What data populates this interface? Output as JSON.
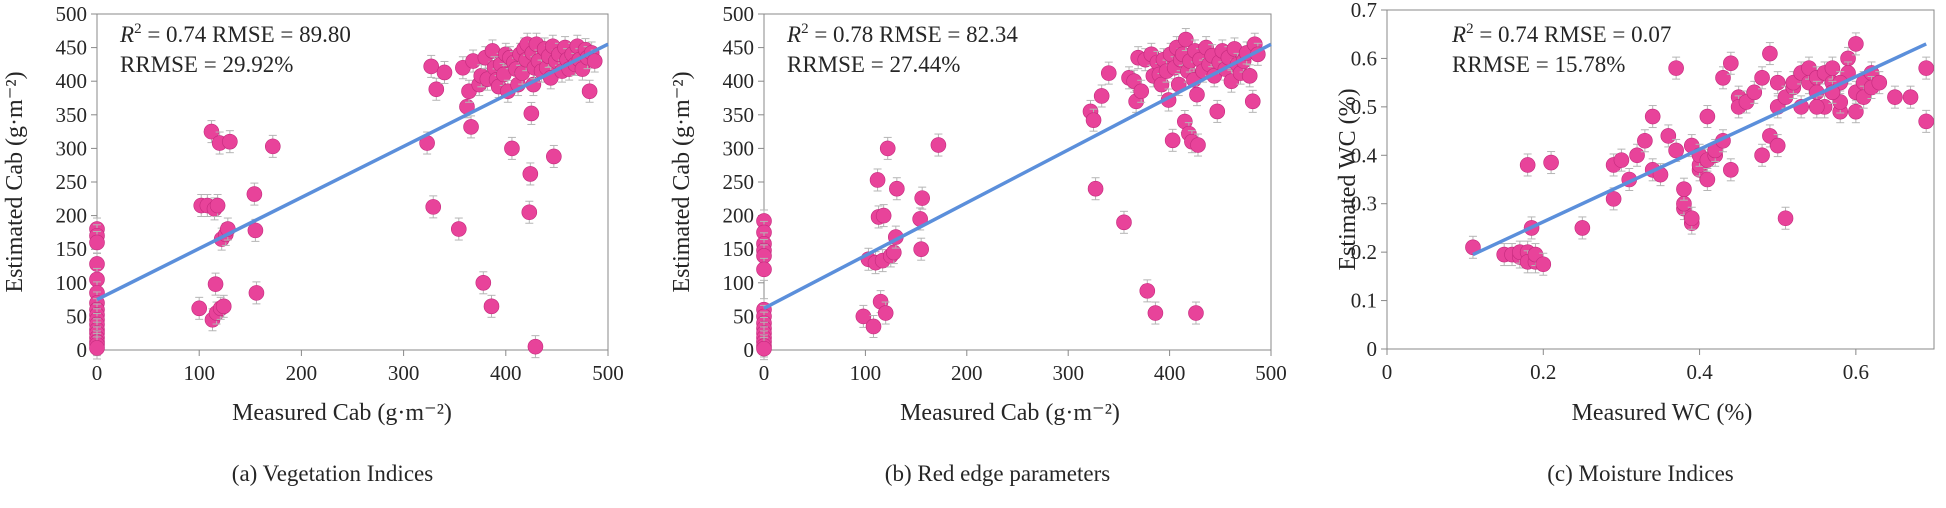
{
  "chart_data": [
    {
      "type": "scatter",
      "caption": "(a) Vegetation Indices",
      "xlabel": "Measured Cab (g·m⁻²)",
      "ylabel": "Estimated Cab (g·m⁻²)",
      "xlim": [
        0,
        500
      ],
      "ylim": [
        0,
        500
      ],
      "xticks": [
        0,
        100,
        200,
        300,
        400,
        500
      ],
      "yticks": [
        0,
        50,
        100,
        150,
        200,
        250,
        300,
        350,
        400,
        450,
        500
      ],
      "stats": {
        "r2": "0.74",
        "rmse": "89.80",
        "rrmse": "29.92%"
      },
      "fit": {
        "x": [
          0,
          500
        ],
        "y": [
          75,
          455
        ]
      },
      "points": [
        [
          0,
          180
        ],
        [
          0,
          170
        ],
        [
          0,
          160
        ],
        [
          0,
          128
        ],
        [
          0,
          105
        ],
        [
          0,
          85
        ],
        [
          0,
          70
        ],
        [
          0,
          60
        ],
        [
          0,
          52
        ],
        [
          0,
          45
        ],
        [
          0,
          38
        ],
        [
          0,
          30
        ],
        [
          0,
          25
        ],
        [
          0,
          18
        ],
        [
          0,
          12
        ],
        [
          0,
          8
        ],
        [
          0,
          3
        ],
        [
          100,
          62
        ],
        [
          102,
          215
        ],
        [
          108,
          215
        ],
        [
          112,
          325
        ],
        [
          113,
          45
        ],
        [
          115,
          210
        ],
        [
          116,
          98
        ],
        [
          117,
          55
        ],
        [
          118,
          215
        ],
        [
          120,
          308
        ],
        [
          121,
          62
        ],
        [
          122,
          165
        ],
        [
          124,
          65
        ],
        [
          126,
          172
        ],
        [
          128,
          180
        ],
        [
          130,
          310
        ],
        [
          154,
          232
        ],
        [
          155,
          178
        ],
        [
          156,
          85
        ],
        [
          172,
          303
        ],
        [
          323,
          308
        ],
        [
          327,
          422
        ],
        [
          329,
          213
        ],
        [
          332,
          388
        ],
        [
          340,
          413
        ],
        [
          354,
          180
        ],
        [
          358,
          420
        ],
        [
          362,
          362
        ],
        [
          364,
          385
        ],
        [
          366,
          332
        ],
        [
          368,
          430
        ],
        [
          374,
          395
        ],
        [
          376,
          408
        ],
        [
          378,
          100
        ],
        [
          380,
          435
        ],
        [
          382,
          403
        ],
        [
          386,
          65
        ],
        [
          387,
          445
        ],
        [
          389,
          420
        ],
        [
          391,
          402
        ],
        [
          393,
          392
        ],
        [
          395,
          425
        ],
        [
          398,
          410
        ],
        [
          400,
          440
        ],
        [
          402,
          385
        ],
        [
          404,
          435
        ],
        [
          406,
          300
        ],
        [
          408,
          428
        ],
        [
          410,
          418
        ],
        [
          412,
          395
        ],
        [
          414,
          440
        ],
        [
          416,
          412
        ],
        [
          418,
          448
        ],
        [
          420,
          432
        ],
        [
          421,
          455
        ],
        [
          423,
          205
        ],
        [
          424,
          262
        ],
        [
          425,
          352
        ],
        [
          426,
          442
        ],
        [
          427,
          395
        ],
        [
          428,
          420
        ],
        [
          429,
          5
        ],
        [
          430,
          455
        ],
        [
          432,
          430
        ],
        [
          435,
          415
        ],
        [
          438,
          448
        ],
        [
          440,
          420
        ],
        [
          442,
          437
        ],
        [
          444,
          405
        ],
        [
          446,
          452
        ],
        [
          447,
          288
        ],
        [
          449,
          430
        ],
        [
          452,
          440
        ],
        [
          455,
          415
        ],
        [
          458,
          450
        ],
        [
          460,
          432
        ],
        [
          462,
          418
        ],
        [
          465,
          440
        ],
        [
          468,
          425
        ],
        [
          470,
          452
        ],
        [
          472,
          432
        ],
        [
          475,
          418
        ],
        [
          478,
          447
        ],
        [
          480,
          435
        ],
        [
          482,
          385
        ],
        [
          484,
          442
        ],
        [
          487,
          430
        ]
      ]
    },
    {
      "type": "scatter",
      "caption": "(b) Red edge parameters",
      "xlabel": "Measured Cab (g·m⁻²)",
      "ylabel": "Estimated Cab (g·m⁻²)",
      "xlim": [
        0,
        500
      ],
      "ylim": [
        0,
        500
      ],
      "xticks": [
        0,
        100,
        200,
        300,
        400,
        500
      ],
      "yticks": [
        0,
        50,
        100,
        150,
        200,
        250,
        300,
        350,
        400,
        450,
        500
      ],
      "stats": {
        "r2": "0.78",
        "rmse": "82.34",
        "rrmse": "27.44%"
      },
      "fit": {
        "x": [
          0,
          500
        ],
        "y": [
          62,
          455
        ]
      },
      "points": [
        [
          0,
          192
        ],
        [
          0,
          175
        ],
        [
          0,
          158
        ],
        [
          0,
          148
        ],
        [
          0,
          140
        ],
        [
          0,
          120
        ],
        [
          0,
          60
        ],
        [
          0,
          50
        ],
        [
          0,
          40
        ],
        [
          0,
          32
        ],
        [
          0,
          25
        ],
        [
          0,
          18
        ],
        [
          0,
          12
        ],
        [
          0,
          6
        ],
        [
          0,
          2
        ],
        [
          98,
          50
        ],
        [
          103,
          135
        ],
        [
          108,
          35
        ],
        [
          110,
          130
        ],
        [
          112,
          253
        ],
        [
          113,
          198
        ],
        [
          115,
          72
        ],
        [
          117,
          133
        ],
        [
          118,
          200
        ],
        [
          120,
          55
        ],
        [
          122,
          300
        ],
        [
          125,
          140
        ],
        [
          128,
          145
        ],
        [
          130,
          168
        ],
        [
          131,
          240
        ],
        [
          154,
          195
        ],
        [
          155,
          150
        ],
        [
          156,
          226
        ],
        [
          172,
          305
        ],
        [
          322,
          355
        ],
        [
          325,
          342
        ],
        [
          327,
          240
        ],
        [
          333,
          378
        ],
        [
          340,
          412
        ],
        [
          355,
          190
        ],
        [
          360,
          405
        ],
        [
          365,
          400
        ],
        [
          367,
          370
        ],
        [
          369,
          435
        ],
        [
          372,
          385
        ],
        [
          376,
          432
        ],
        [
          378,
          88
        ],
        [
          382,
          440
        ],
        [
          384,
          408
        ],
        [
          386,
          55
        ],
        [
          388,
          428
        ],
        [
          390,
          410
        ],
        [
          392,
          395
        ],
        [
          394,
          432
        ],
        [
          397,
          415
        ],
        [
          399,
          372
        ],
        [
          401,
          440
        ],
        [
          403,
          312
        ],
        [
          405,
          420
        ],
        [
          407,
          450
        ],
        [
          409,
          395
        ],
        [
          411,
          432
        ],
        [
          413,
          440
        ],
        [
          415,
          340
        ],
        [
          416,
          462
        ],
        [
          418,
          415
        ],
        [
          419,
          322
        ],
        [
          420,
          430
        ],
        [
          422,
          310
        ],
        [
          424,
          402
        ],
        [
          425,
          445
        ],
        [
          426,
          55
        ],
        [
          427,
          380
        ],
        [
          428,
          305
        ],
        [
          430,
          432
        ],
        [
          433,
          415
        ],
        [
          436,
          450
        ],
        [
          439,
          425
        ],
        [
          442,
          438
        ],
        [
          444,
          408
        ],
        [
          447,
          355
        ],
        [
          449,
          428
        ],
        [
          452,
          445
        ],
        [
          455,
          418
        ],
        [
          458,
          435
        ],
        [
          461,
          400
        ],
        [
          464,
          448
        ],
        [
          467,
          425
        ],
        [
          470,
          412
        ],
        [
          473,
          430
        ],
        [
          476,
          442
        ],
        [
          479,
          408
        ],
        [
          482,
          370
        ],
        [
          484,
          455
        ],
        [
          487,
          440
        ]
      ]
    },
    {
      "type": "scatter",
      "caption": "(c) Moisture Indices",
      "xlabel": "Measured WC (%)",
      "ylabel": "Estimated WC (%)",
      "xlim": [
        0,
        0.7
      ],
      "ylim": [
        0,
        0.7
      ],
      "xticks": [
        0,
        0.2,
        0.4,
        0.6
      ],
      "yticks": [
        0,
        0.1,
        0.2,
        0.3,
        0.4,
        0.5,
        0.6,
        0.7
      ],
      "stats": {
        "r2": "0.74",
        "rmse": "0.07",
        "rrmse": "15.78%"
      },
      "fit": {
        "x": [
          0.11,
          0.69
        ],
        "y": [
          0.195,
          0.63
        ]
      },
      "points": [
        [
          0.11,
          0.21
        ],
        [
          0.15,
          0.195
        ],
        [
          0.16,
          0.195
        ],
        [
          0.17,
          0.19
        ],
        [
          0.17,
          0.2
        ],
        [
          0.18,
          0.2
        ],
        [
          0.18,
          0.18
        ],
        [
          0.18,
          0.38
        ],
        [
          0.185,
          0.25
        ],
        [
          0.19,
          0.18
        ],
        [
          0.19,
          0.195
        ],
        [
          0.2,
          0.175
        ],
        [
          0.21,
          0.385
        ],
        [
          0.25,
          0.25
        ],
        [
          0.29,
          0.31
        ],
        [
          0.29,
          0.38
        ],
        [
          0.3,
          0.39
        ],
        [
          0.31,
          0.35
        ],
        [
          0.32,
          0.4
        ],
        [
          0.33,
          0.43
        ],
        [
          0.34,
          0.37
        ],
        [
          0.34,
          0.48
        ],
        [
          0.35,
          0.36
        ],
        [
          0.36,
          0.44
        ],
        [
          0.37,
          0.41
        ],
        [
          0.37,
          0.58
        ],
        [
          0.38,
          0.29
        ],
        [
          0.38,
          0.3
        ],
        [
          0.38,
          0.33
        ],
        [
          0.39,
          0.26
        ],
        [
          0.39,
          0.27
        ],
        [
          0.39,
          0.42
        ],
        [
          0.4,
          0.37
        ],
        [
          0.4,
          0.38
        ],
        [
          0.4,
          0.4
        ],
        [
          0.41,
          0.35
        ],
        [
          0.41,
          0.39
        ],
        [
          0.41,
          0.48
        ],
        [
          0.42,
          0.4
        ],
        [
          0.42,
          0.41
        ],
        [
          0.43,
          0.43
        ],
        [
          0.43,
          0.56
        ],
        [
          0.44,
          0.37
        ],
        [
          0.44,
          0.59
        ],
        [
          0.45,
          0.52
        ],
        [
          0.45,
          0.5
        ],
        [
          0.46,
          0.51
        ],
        [
          0.47,
          0.53
        ],
        [
          0.48,
          0.4
        ],
        [
          0.48,
          0.56
        ],
        [
          0.49,
          0.44
        ],
        [
          0.49,
          0.61
        ],
        [
          0.5,
          0.42
        ],
        [
          0.5,
          0.55
        ],
        [
          0.5,
          0.5
        ],
        [
          0.51,
          0.27
        ],
        [
          0.51,
          0.52
        ],
        [
          0.52,
          0.54
        ],
        [
          0.52,
          0.55
        ],
        [
          0.53,
          0.57
        ],
        [
          0.53,
          0.5
        ],
        [
          0.54,
          0.55
        ],
        [
          0.54,
          0.58
        ],
        [
          0.55,
          0.56
        ],
        [
          0.55,
          0.53
        ],
        [
          0.56,
          0.57
        ],
        [
          0.56,
          0.5
        ],
        [
          0.57,
          0.55
        ],
        [
          0.57,
          0.58
        ],
        [
          0.58,
          0.49
        ],
        [
          0.58,
          0.51
        ],
        [
          0.59,
          0.6
        ],
        [
          0.59,
          0.57
        ],
        [
          0.6,
          0.53
        ],
        [
          0.6,
          0.49
        ],
        [
          0.6,
          0.63
        ],
        [
          0.61,
          0.55
        ],
        [
          0.61,
          0.52
        ],
        [
          0.62,
          0.57
        ],
        [
          0.62,
          0.54
        ],
        [
          0.63,
          0.55
        ],
        [
          0.65,
          0.52
        ],
        [
          0.67,
          0.52
        ],
        [
          0.69,
          0.47
        ],
        [
          0.69,
          0.58
        ],
        [
          0.58,
          0.55
        ],
        [
          0.57,
          0.53
        ],
        [
          0.55,
          0.5
        ]
      ]
    }
  ],
  "style": {
    "point_color": "#E8439A",
    "point_stroke": "#c42a7d",
    "fit_color": "#5B8FDB",
    "axis_color": "#888888"
  }
}
